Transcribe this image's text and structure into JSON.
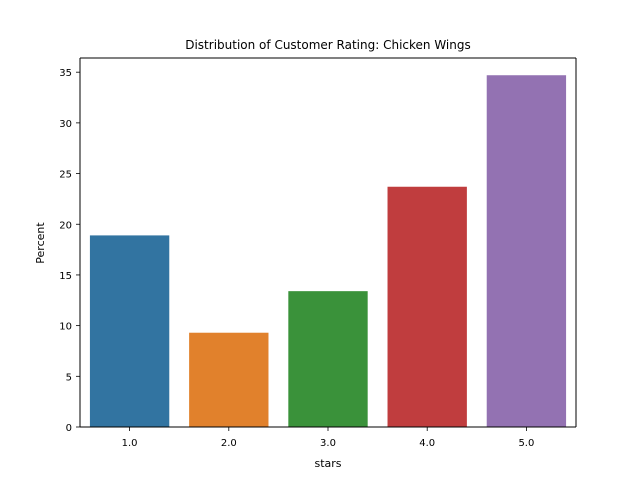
{
  "chart_data": {
    "type": "bar",
    "title": "Distribution of Customer Rating: Chicken Wings",
    "xlabel": "stars",
    "ylabel": "Percent",
    "categories": [
      "1.0",
      "2.0",
      "3.0",
      "4.0",
      "5.0"
    ],
    "values": [
      18.9,
      9.3,
      13.4,
      23.7,
      34.7
    ],
    "colors": [
      "#3274a1",
      "#e1812c",
      "#3a923a",
      "#c03d3e",
      "#9372b2"
    ],
    "ylim": [
      0,
      36.4
    ],
    "yticks": [
      "0",
      "5",
      "10",
      "15",
      "20",
      "25",
      "30",
      "35"
    ],
    "grid": false,
    "legend": "none"
  }
}
